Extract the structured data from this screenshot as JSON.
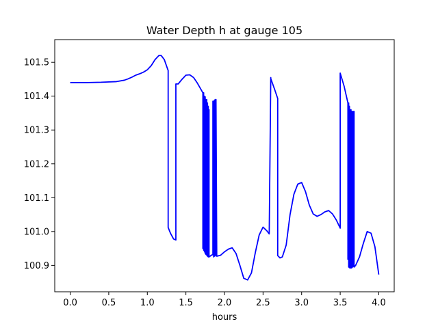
{
  "chart_data": {
    "type": "line",
    "title": "Water Depth h at gauge 105",
    "xlabel": "hours",
    "ylabel": "",
    "xlim": [
      -0.2,
      4.2
    ],
    "ylim": [
      100.822,
      101.567
    ],
    "xticks": [
      0.0,
      0.5,
      1.0,
      1.5,
      2.0,
      2.5,
      3.0,
      3.5,
      4.0
    ],
    "xtick_labels": [
      "0.0",
      "0.5",
      "1.0",
      "1.5",
      "2.0",
      "2.5",
      "3.0",
      "3.5",
      "4.0"
    ],
    "yticks": [
      100.9,
      101.0,
      101.1,
      101.2,
      101.3,
      101.4,
      101.5
    ],
    "ytick_labels": [
      "100.9",
      "101.0",
      "101.1",
      "101.2",
      "101.3",
      "101.4",
      "101.5"
    ],
    "grid": false,
    "series": [
      {
        "color": "#0000ff",
        "x": [
          0.0,
          0.2,
          0.4,
          0.6,
          0.7,
          0.75,
          0.8,
          0.85,
          0.9,
          0.95,
          1.0,
          1.05,
          1.1,
          1.15,
          1.18,
          1.22,
          1.26,
          1.27,
          1.27,
          1.3,
          1.34,
          1.37,
          1.37,
          1.4,
          1.45,
          1.5,
          1.55,
          1.6,
          1.65,
          1.7,
          1.72,
          1.72,
          1.73,
          1.73,
          1.74,
          1.74,
          1.75,
          1.75,
          1.76,
          1.76,
          1.77,
          1.77,
          1.78,
          1.78,
          1.79,
          1.79,
          1.8,
          1.8,
          1.83,
          1.85,
          1.85,
          1.86,
          1.86,
          1.87,
          1.87,
          1.88,
          1.88,
          1.89,
          1.89,
          1.9,
          1.95,
          2.0,
          2.05,
          2.1,
          2.15,
          2.2,
          2.25,
          2.3,
          2.35,
          2.4,
          2.45,
          2.5,
          2.55,
          2.58,
          2.6,
          2.6,
          2.65,
          2.69,
          2.69,
          2.72,
          2.75,
          2.8,
          2.85,
          2.9,
          2.95,
          3.0,
          3.05,
          3.1,
          3.15,
          3.2,
          3.25,
          3.3,
          3.35,
          3.4,
          3.45,
          3.5,
          3.5,
          3.55,
          3.58,
          3.6,
          3.6,
          3.61,
          3.61,
          3.62,
          3.62,
          3.63,
          3.63,
          3.64,
          3.64,
          3.65,
          3.65,
          3.66,
          3.66,
          3.67,
          3.67,
          3.68,
          3.68,
          3.7,
          3.75,
          3.8,
          3.85,
          3.9,
          3.95,
          4.0
        ],
        "y": [
          101.44,
          101.44,
          101.441,
          101.443,
          101.447,
          101.451,
          101.456,
          101.462,
          101.466,
          101.471,
          101.478,
          101.49,
          101.508,
          101.52,
          101.52,
          101.508,
          101.482,
          101.476,
          101.012,
          100.995,
          100.978,
          100.975,
          101.436,
          101.436,
          101.45,
          101.462,
          101.463,
          101.455,
          101.438,
          101.418,
          101.41,
          100.95,
          101.41,
          100.945,
          101.4,
          100.94,
          101.398,
          100.935,
          101.39,
          100.932,
          101.39,
          100.93,
          101.38,
          100.927,
          101.37,
          100.925,
          101.36,
          100.925,
          100.93,
          100.932,
          101.385,
          100.925,
          101.385,
          100.927,
          101.388,
          100.928,
          101.39,
          100.93,
          101.39,
          100.927,
          100.93,
          100.94,
          100.948,
          100.952,
          100.935,
          100.9,
          100.862,
          100.857,
          100.878,
          100.938,
          100.99,
          101.013,
          101.002,
          100.993,
          101.455,
          101.452,
          101.42,
          101.393,
          100.929,
          100.922,
          100.925,
          100.96,
          101.05,
          101.11,
          101.14,
          101.145,
          101.118,
          101.078,
          101.052,
          101.045,
          101.05,
          101.058,
          101.062,
          101.052,
          101.034,
          101.01,
          101.468,
          101.43,
          101.4,
          101.38,
          100.918,
          101.38,
          100.895,
          101.37,
          100.893,
          101.36,
          100.893,
          101.36,
          100.892,
          101.355,
          100.893,
          101.355,
          100.895,
          101.355,
          100.897,
          101.355,
          100.895,
          100.9,
          100.925,
          100.965,
          101.0,
          100.995,
          100.955,
          100.873
        ]
      }
    ]
  }
}
